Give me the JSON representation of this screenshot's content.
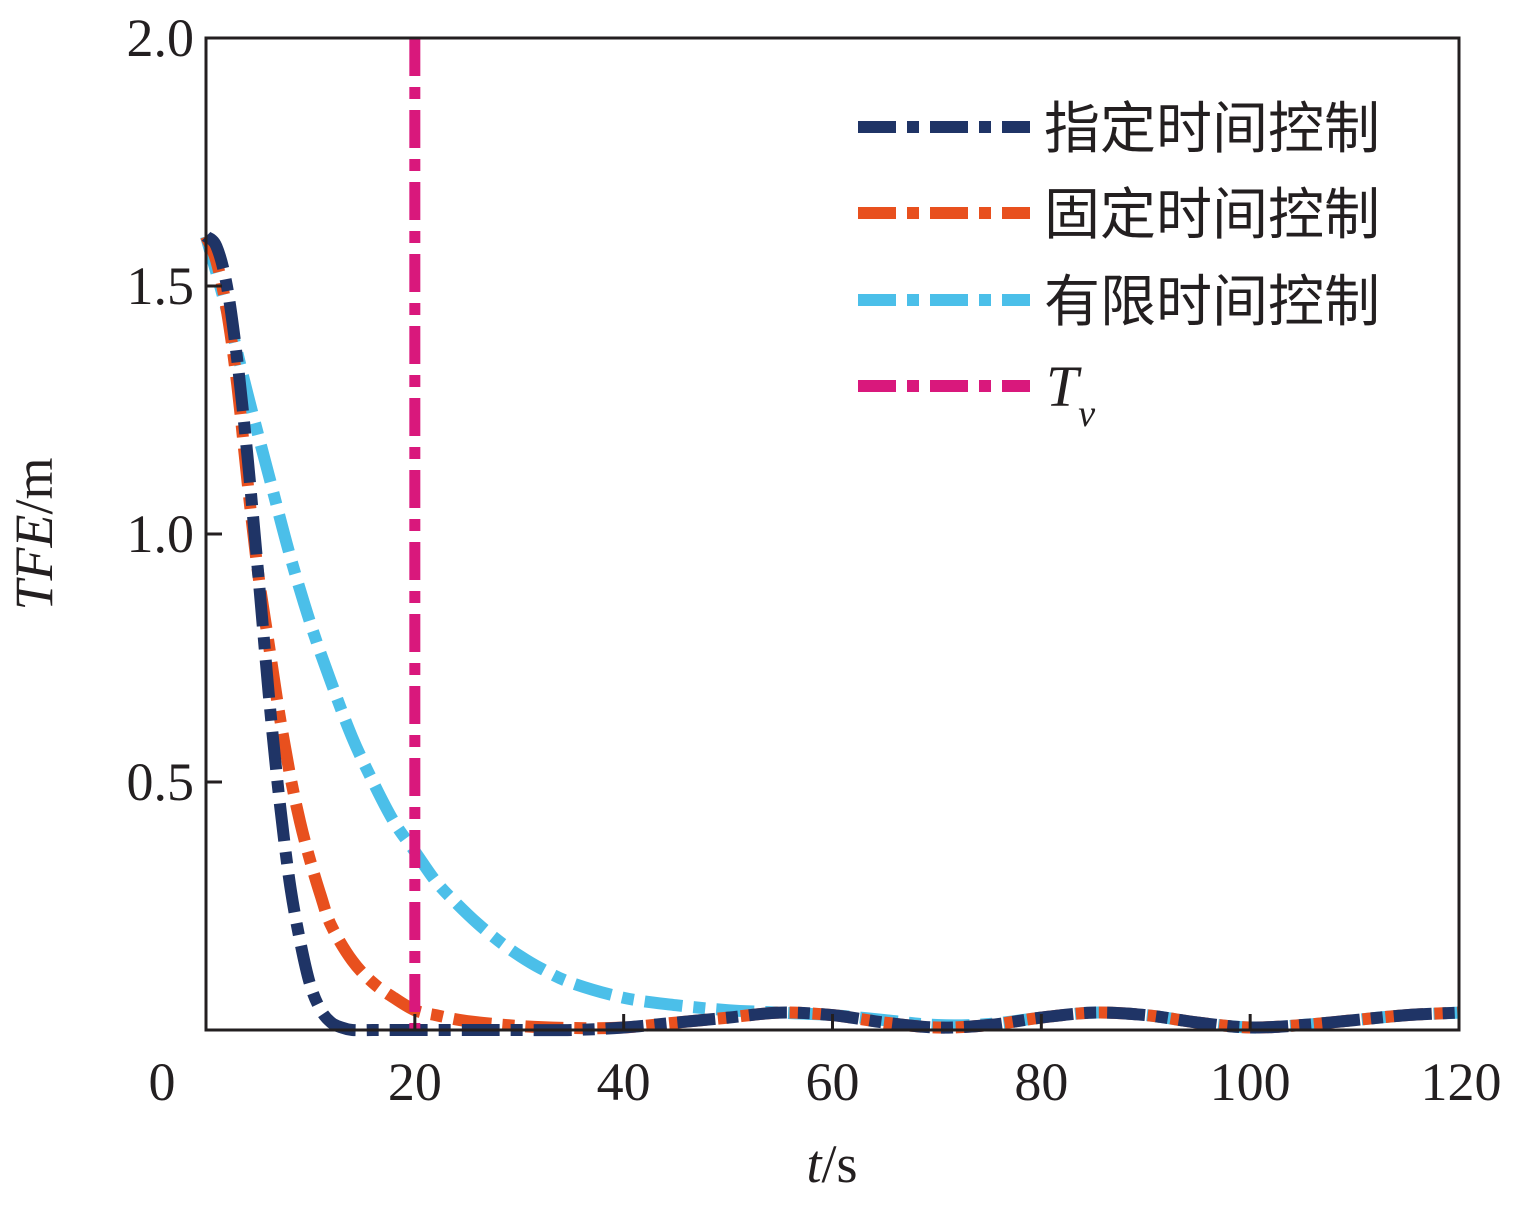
{
  "chart_data": {
    "type": "line",
    "xlabel": {
      "var": "t",
      "unit": "/s"
    },
    "ylabel": {
      "var": "TFE",
      "unit": "/m"
    },
    "xlim": [
      0,
      120
    ],
    "ylim": [
      0,
      2.0
    ],
    "xticks": [
      "0",
      "20",
      "40",
      "60",
      "80",
      "100",
      "120"
    ],
    "yticks": [
      "0.5",
      "1.0",
      "1.5",
      "2.0"
    ],
    "grid": false,
    "legend_position": "top-right",
    "series": [
      {
        "name": "指定时间控制",
        "color": "#1f3466",
        "style": "dash-dot",
        "x": [
          0,
          1,
          2,
          3,
          4,
          5,
          6,
          7,
          8,
          9,
          10,
          11,
          12,
          13,
          14,
          16,
          18,
          20,
          25,
          30,
          35,
          40,
          45,
          50,
          55,
          60,
          65,
          70,
          75,
          80,
          85,
          90,
          95,
          100,
          105,
          110,
          115,
          120
        ],
        "y": [
          1.6,
          1.58,
          1.5,
          1.35,
          1.15,
          0.92,
          0.68,
          0.47,
          0.3,
          0.18,
          0.09,
          0.04,
          0.015,
          0.005,
          0.0,
          0.0,
          0.0,
          0.0,
          0.0,
          0.0,
          0.0,
          0.005,
          0.015,
          0.025,
          0.035,
          0.03,
          0.015,
          0.005,
          0.01,
          0.025,
          0.035,
          0.03,
          0.015,
          0.005,
          0.01,
          0.02,
          0.03,
          0.035
        ]
      },
      {
        "name": "固定时间控制",
        "color": "#e8501e",
        "style": "dash-dot",
        "x": [
          0,
          1,
          2,
          3,
          4,
          5,
          6,
          7,
          8,
          9,
          10,
          11,
          12,
          14,
          16,
          18,
          20,
          22,
          25,
          30,
          35,
          40,
          45,
          50,
          55,
          60,
          65,
          70,
          75,
          80,
          85,
          90,
          95,
          100,
          105,
          110,
          115,
          120
        ],
        "y": [
          1.6,
          1.55,
          1.45,
          1.3,
          1.1,
          0.92,
          0.78,
          0.64,
          0.52,
          0.42,
          0.34,
          0.27,
          0.21,
          0.14,
          0.095,
          0.065,
          0.04,
          0.03,
          0.018,
          0.008,
          0.004,
          0.005,
          0.015,
          0.025,
          0.035,
          0.03,
          0.015,
          0.005,
          0.01,
          0.025,
          0.035,
          0.03,
          0.015,
          0.005,
          0.01,
          0.02,
          0.03,
          0.035
        ]
      },
      {
        "name": "有限时间控制",
        "color": "#4bbfe9",
        "style": "dash-dot",
        "x": [
          0,
          2,
          4,
          6,
          8,
          10,
          12,
          14,
          16,
          18,
          20,
          22,
          24,
          26,
          28,
          30,
          32,
          35,
          40,
          45,
          50,
          55,
          60,
          65,
          70,
          75,
          80,
          85,
          90,
          95,
          100,
          105,
          110,
          115,
          120
        ],
        "y": [
          1.6,
          1.45,
          1.28,
          1.12,
          0.96,
          0.82,
          0.7,
          0.59,
          0.5,
          0.42,
          0.36,
          0.3,
          0.255,
          0.215,
          0.18,
          0.15,
          0.125,
          0.095,
          0.065,
          0.05,
          0.04,
          0.035,
          0.03,
          0.02,
          0.01,
          0.012,
          0.025,
          0.035,
          0.03,
          0.015,
          0.005,
          0.01,
          0.02,
          0.03,
          0.035
        ]
      },
      {
        "name": "T_v",
        "label_main": "T",
        "label_sub": "v",
        "color": "#d9187c",
        "style": "dash-dot",
        "vertical_x": 20
      }
    ]
  }
}
